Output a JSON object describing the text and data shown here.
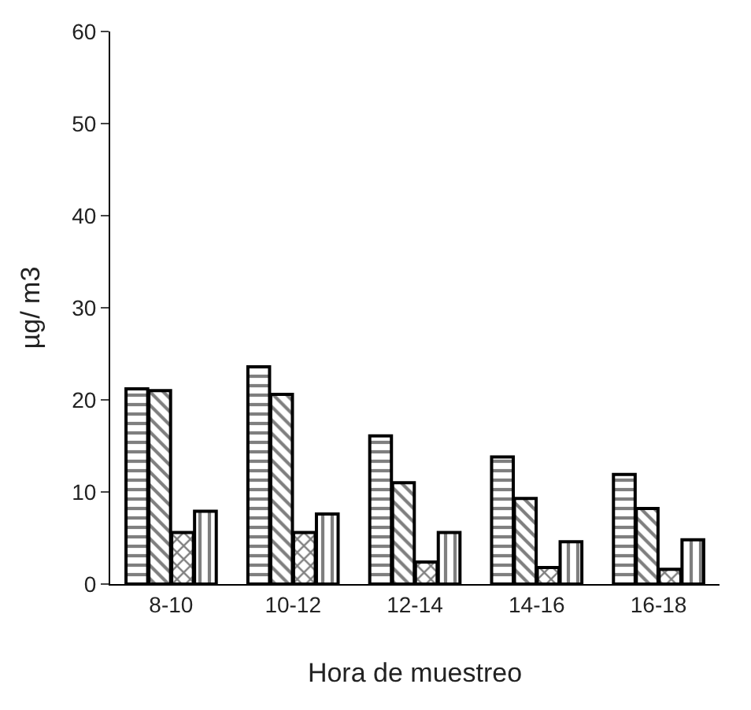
{
  "chart_data": {
    "type": "bar",
    "xlabel": "Hora de muestreo",
    "ylabel": "µg/ m3",
    "categories": [
      "8-10",
      "10-12",
      "12-14",
      "14-16",
      "16-18"
    ],
    "series": [
      {
        "color": "#000000",
        "values": [
          21.2,
          23.6,
          16.1,
          13.8,
          11.9
        ]
      },
      {
        "color": "#000000",
        "values": [
          21.0,
          20.6,
          11.0,
          9.3,
          8.2
        ]
      },
      {
        "color": "#000000",
        "values": [
          5.6,
          5.6,
          2.4,
          1.8,
          1.6
        ]
      },
      {
        "color": "#000000",
        "values": [
          7.9,
          7.6,
          5.6,
          4.6,
          4.8
        ]
      }
    ],
    "ylim": [
      0,
      60
    ],
    "yticks": [
      0,
      10,
      20,
      30,
      40,
      50,
      60
    ]
  }
}
